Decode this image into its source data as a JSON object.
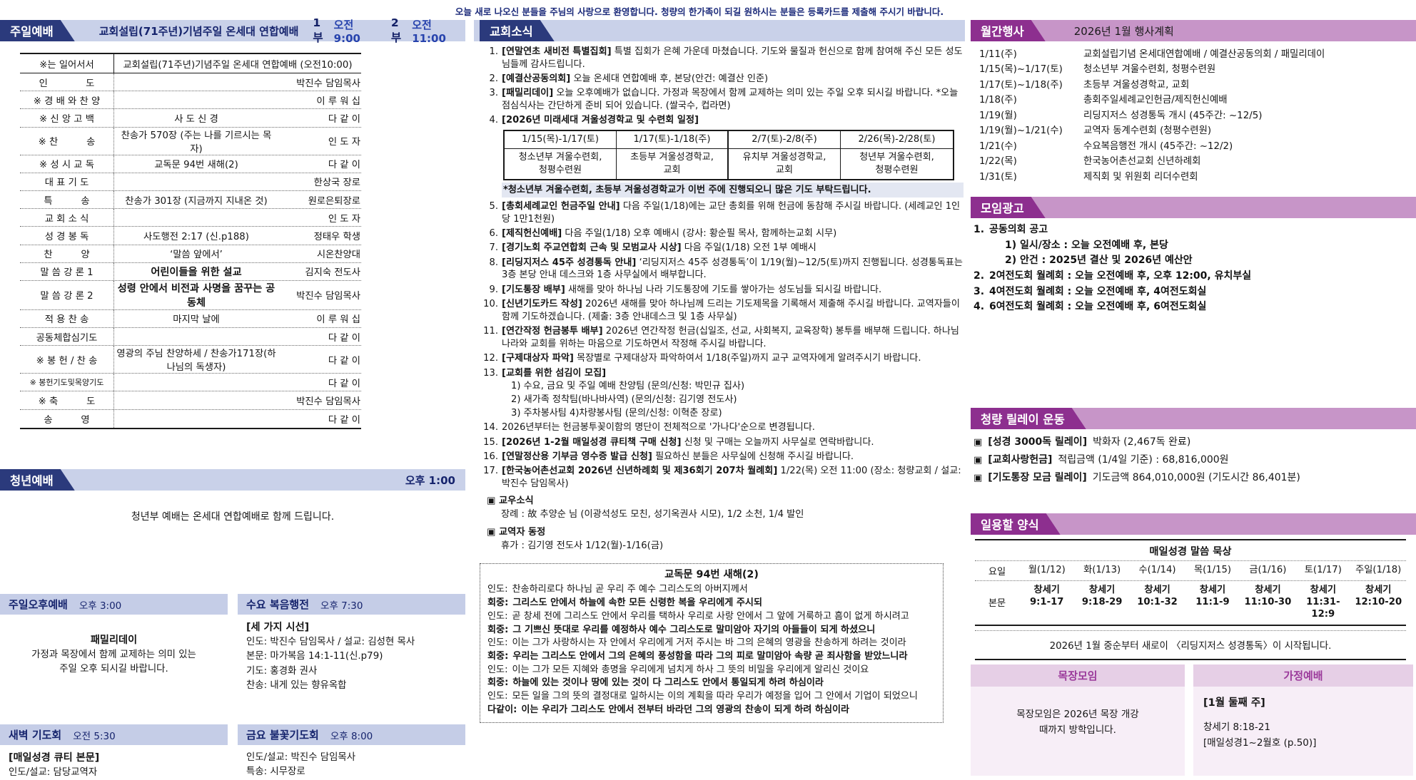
{
  "colors": {
    "navy_tab": "#2b3a7c",
    "blue_band": "#c9d1e9",
    "purple_tab": "#8d2f8f",
    "purple_band": "#c795c8",
    "navy_text": "#16246d",
    "highlight_bg": "#e3e7f2",
    "pink_box_head": "#e6cfe6",
    "pink_box_body": "#f7eef7"
  },
  "top_notice": "오늘 새로 나오신 분들을 주님의 사랑으로 환영합니다. 청량의 한가족이 되길 원하시는 분들은 등록카드를 제출해 주시기 바랍니다.",
  "sunday_worship": {
    "tab": "주일예배",
    "band_title": "교회설립(71주년)기념주일  온세대  연합예배",
    "part1_label": "1부",
    "part1_time": "오전9:00",
    "part2_label": "2부",
    "part2_time": "오전 11:00",
    "header_left": "※는 일어서서",
    "header_right": "교회설립(71주년)기념주일 온세대 연합예배 (오전10:00)",
    "rows": [
      {
        "label": "인　　　　도",
        "content": "",
        "leader": "박진수 담임목사"
      },
      {
        "label": "※ 경 배 와 찬 양",
        "content": "",
        "leader": "이 루 워 십"
      },
      {
        "label": "※ 신 앙 고 백",
        "content": "사 도 신 경",
        "leader": "다  같  이"
      },
      {
        "label": "※ 찬　　　송",
        "content": "찬송가 570장 (주는 나를 기르시는 목자)",
        "leader": "인  도  자"
      },
      {
        "label": "※ 성 시 교 독",
        "content": "교독문 94번 새해(2)",
        "leader": "다  같  이"
      },
      {
        "label": "대  표  기  도",
        "content": "",
        "leader": "한상국 장로"
      },
      {
        "label": "특　　　송",
        "content": "찬송가 301장 (지금까지 지내온 것)",
        "leader": "원로은퇴장로"
      },
      {
        "label": "교  회  소  식",
        "content": "",
        "leader": "인  도  자"
      },
      {
        "label": "성  경  봉  독",
        "content": "사도행전 2:17 (신.p188)",
        "leader": "정태우 학생"
      },
      {
        "label": "찬　　　양",
        "content": "‘말씀 앞에서’",
        "leader": "시온찬양대"
      },
      {
        "label": "말 씀 강 론 1",
        "content": "어린이들을 위한 설교",
        "bold": true,
        "leader": "김지숙 전도사"
      },
      {
        "label": "말 씀 강 론 2",
        "content": "성령 안에서 비전과 사명을 꿈꾸는 공동체",
        "bold": true,
        "leader": "박진수 담임목사"
      },
      {
        "label": "적  용  찬  송",
        "content": "마지막 날에",
        "leader": "이 루 워 십"
      },
      {
        "label": "공동체합심기도",
        "content": "",
        "leader": "다  같  이"
      },
      {
        "label": "※ 봉 헌 / 찬 송",
        "content": "영광의 주님 찬양하세 / 찬송가171장(하나님의 독생자)",
        "leader": "다  같  이"
      },
      {
        "label": "※ 봉헌기도및목양기도",
        "small": true,
        "content": "",
        "leader": "다  같  이"
      },
      {
        "label": "※ 축　　　도",
        "content": "",
        "leader": "박진수 담임목사"
      },
      {
        "label": "송　　　영",
        "content": "",
        "leader": "다  같  이"
      }
    ]
  },
  "youth_worship": {
    "tab": "청년예배",
    "time": "오후 1:00",
    "note": "청년부 예배는 온세대 연합예배로 함께 드립니다."
  },
  "sub_services": [
    {
      "title": "주일오후예배",
      "time": "오후 3:00",
      "center": true,
      "lines": [
        {
          "text": "패밀리데이",
          "bold": true
        },
        {
          "text": "가정과 목장에서 함께 교제하는 의미 있는",
          "bold": false
        },
        {
          "text": "주일 오후 되시길 바랍니다.",
          "bold": false
        }
      ]
    },
    {
      "title": "수요 복음행전",
      "time": "오후 7:30",
      "center": false,
      "lines": [
        {
          "text": "[세 가지 시선]",
          "bold": true
        },
        {
          "text": "인도: 박진수 담임목사 / 설교: 김성현 목사",
          "bold": false
        },
        {
          "text": "본문: 마가복음 14:1-11(신.p79)",
          "bold": false
        },
        {
          "text": "기도: 홍경화 권사",
          "bold": false
        },
        {
          "text": "찬송: 내게 있는 향유옥합",
          "bold": false
        }
      ]
    },
    {
      "title": "새벽 기도회",
      "time": "오전 5:30",
      "center": false,
      "lines": [
        {
          "text": "[매일성경 큐티 본문]",
          "bold": true
        },
        {
          "text": "인도/설교: 담당교역자",
          "bold": false
        }
      ]
    },
    {
      "title": "금요 불꽃기도회",
      "time": "오후 8:00",
      "center": false,
      "lines": [
        {
          "text": "인도/설교: 박진수 담임목사",
          "bold": false
        },
        {
          "text": "특송: 시무장로",
          "bold": false
        }
      ]
    }
  ],
  "church_news": {
    "tab": "교회소식",
    "items": [
      {
        "num": "1.",
        "head": "[연말연초 새비전 특별집회]",
        "text": "특별 집회가 은혜 가운데 마쳤습니다. 기도와 물질과 헌신으로 함께 참여해 주신 모든 성도님들께 감사드립니다."
      },
      {
        "num": "2.",
        "head": "[예결산공동의회]",
        "text": "오늘 온세대 연합예배 후, 본당(안건: 예결산 인준)"
      },
      {
        "num": "3.",
        "head": "[패밀리데이]",
        "text": "오늘 오후예배가 없습니다. 가정과 목장에서 함께 교제하는 의미 있는 주일 오후 되시길 바랍니다. *오늘 점심식사는 간단하게 준비 되어 있습니다. (쌀국수, 컵라면)"
      },
      {
        "num": "4.",
        "head": "[2026년 미래세대 겨울성경학교 및 수련회 일정]",
        "text": "",
        "camp_table": true
      },
      {
        "num": "5.",
        "head": "[총회세례교인 헌금주일 안내]",
        "text": "다음 주일(1/18)에는 교단 총회를 위해 헌금에 동참해 주시길 바랍니다. (세례교인 1인당 1만1천원)"
      },
      {
        "num": "6.",
        "head": "[제직헌신예배]",
        "text": "다음 주일(1/18) 오후 예배시 (강사: 황순필 목사, 함께하는교회 시무)"
      },
      {
        "num": "7.",
        "head": "[경기노회 주교연합회 근속 및 모범교사 시상]",
        "text": "다음 주일(1/18) 오전 1부 예배시"
      },
      {
        "num": "8.",
        "head": "[리딩지저스 45주 성경통독 안내]",
        "text": "‘리딩지저스 45주 성경통독’이 1/19(월)~12/5(토)까지 진행됩니다. 성경통독표는 3층 본당 안내 데스크와 1층 사무실에서 배부합니다."
      },
      {
        "num": "9.",
        "head": "[기도통장 배부]",
        "text": "새해를 맞아 하나님 나라 기도통장에 기도를 쌓아가는 성도님들 되시길 바랍니다."
      },
      {
        "num": "10.",
        "head": "[신년기도카드 작성]",
        "text": "2026년 새해를 맞아 하나님께 드리는 기도제목을 기록해서 제출해 주시길 바랍니다. 교역자들이 함께 기도하겠습니다. (제출: 3층 안내데스크 및 1층 사무실)"
      },
      {
        "num": "11.",
        "head": "[연간작정 헌금봉투 배부]",
        "text": "2026년 연간작정 헌금(십일조, 선교, 사회복지, 교육장학) 봉투를 배부해 드립니다. 하나님 나라와 교회를 위하는 마음으로 기도하면서 작정해 주시길 바랍니다."
      },
      {
        "num": "12.",
        "head": "[구제대상자 파악]",
        "text": "목장별로 구제대상자 파악하여서 1/18(주일)까지 교구 교역자에게 알려주시기 바랍니다."
      },
      {
        "num": "13.",
        "head": "[교회를 위한 섬김이 모집]",
        "text": "",
        "subs": [
          "1) 수요, 금요 및 주일 예배 찬양팀 (문의/신청: 박민규 집사)",
          "2) 새가족 정착팀(바나바사역) (문의/신청: 김기영 전도사)",
          "3) 주차봉사팀   4)차량봉사팀 (문의/신청: 이혁춘 장로)"
        ]
      },
      {
        "num": "14.",
        "head": "",
        "text": "2026년부터는 헌금봉투꽂이함의 명단이 전체적으로 '가나다'순으로 변경됩니다."
      },
      {
        "num": "15.",
        "head": "[2026년 1-2월 매일성경 큐티책 구매 신청]",
        "text": "신청 및 구매는 오늘까지 사무실로 연락바랍니다."
      },
      {
        "num": "16.",
        "head": "[연말정산용 기부금 영수증 발급 신청]",
        "text": "필요하신 분들은 사무실에 신청해 주시길 바랍니다."
      },
      {
        "num": "17.",
        "head": "[한국농어촌선교회 2026년 신년하례회 및 제36회기 207차 월례회]",
        "text": "1/22(목) 오전 11:00 (장소: 청량교회 / 설교: 박진수 담임목사)"
      }
    ],
    "camp_table": [
      {
        "dates": "1/15(목)-1/17(토)",
        "desc1": "청소년부 겨울수련회,",
        "desc2": "청평수련원"
      },
      {
        "dates": "1/17(토)-1/18(주)",
        "desc1": "초등부 겨울성경학교,",
        "desc2": "교회"
      },
      {
        "dates": "2/7(토)-2/8(주)",
        "desc1": "유치부 겨울성경학교,",
        "desc2": "교회"
      },
      {
        "dates": "2/26(목)-2/28(토)",
        "desc1": "청년부 겨울수련회,",
        "desc2": "청평수련원"
      }
    ],
    "camp_note": "*청소년부 겨울수련회, 초등부 겨울성경학교가 이번 주에 진행되오니 많은 기도 부탁드립니다.",
    "member_news_head": "▣ 교우소식",
    "member_news_line": "장례 :  故 추양순 님 (이광석성도 모친, 성기옥권사 시모), 1/2 소천, 1/4 발인",
    "staff_news_head": "▣ 교역자 동정",
    "staff_news_line": "휴가 : 김기영 전도사 1/12(월)-1/16(금)"
  },
  "responsive_reading": {
    "title": "교독문  94번  새해(2)",
    "lines": [
      {
        "speaker": "인도:",
        "text": "찬송하리로다 하나님 곧 우리 주 예수 그리스도의 아버지께서",
        "bold": false
      },
      {
        "speaker": "회중:",
        "text": "그리스도 안에서 하늘에 속한 모든 신령한 복을 우리에게 주시되",
        "bold": true
      },
      {
        "speaker": "인도:",
        "text": "곧 창세 전에 그리스도 안에서 우리를 택하사 우리로 사랑 안에서 그 앞에 거룩하고 흠이 없게 하시려고",
        "bold": false
      },
      {
        "speaker": "회중:",
        "text": "그 기쁘신 뜻대로 우리를 예정하사 예수 그리스도로 말미암아 자기의 아들들이 되게 하셨으니",
        "bold": true
      },
      {
        "speaker": "인도:",
        "text": "이는 그가 사랑하시는 자 안에서 우리에게 거저 주시는 바 그의 은혜의 영광을 찬송하게 하려는 것이라",
        "bold": false
      },
      {
        "speaker": "회중:",
        "text": "우리는 그리스도 안에서 그의 은혜의 풍성함을 따라 그의 피로 말미암아 속량 곧 죄사함을 받았느니라",
        "bold": true
      },
      {
        "speaker": "인도:",
        "text": "이는 그가 모든 지혜와 총명을 우리에게 넘치게 하사 그 뜻의 비밀을 우리에게 알리신 것이요",
        "bold": false
      },
      {
        "speaker": "회중:",
        "text": "하늘에 있는 것이나 땅에 있는 것이 다 그리스도 안에서 통일되게 하려 하심이라",
        "bold": true
      },
      {
        "speaker": "인도:",
        "text": "모든 일을 그의 뜻의 결정대로 일하시는 이의 계획을 따라 우리가 예정을 입어 그 안에서 기업이 되었으니",
        "bold": false
      },
      {
        "speaker": "다같이:",
        "text": "이는 우리가 그리스도 안에서 전부터 바라던 그의 영광의 찬송이 되게 하려 하심이라",
        "bold": true
      }
    ]
  },
  "monthly_events": {
    "tab": "월간행사",
    "title": "2026년  1월  행사계획",
    "events": [
      {
        "date": "1/11(주)",
        "desc": "교회설립기념 온세대연합예배 / 예결산공동의회 / 패밀리데이"
      },
      {
        "date": "1/15(목)~1/17(토)",
        "desc": "청소년부 겨울수련회, 청평수련원"
      },
      {
        "date": "1/17(토)~1/18(주)",
        "desc": "초등부 겨울성경학교, 교회"
      },
      {
        "date": "1/18(주)",
        "desc": "총회주일세례교인헌금/제직헌신예배"
      },
      {
        "date": "1/19(월)",
        "desc": "리딩지저스 성경통독 개시 (45주간: ~12/5)"
      },
      {
        "date": "1/19(월)~1/21(수)",
        "desc": "교역자 동계수련회 (청평수련원)"
      },
      {
        "date": "1/21(수)",
        "desc": "수요복음행전 개시 (45주간: ~12/2)"
      },
      {
        "date": "1/22(목)",
        "desc": "한국농어촌선교회 신년하례회"
      },
      {
        "date": "1/31(토)",
        "desc": "제직회 및 위원회 리더수련회"
      }
    ]
  },
  "meeting_ads": {
    "tab": "모임광고",
    "items": [
      {
        "num": "1.",
        "text": "공동의회 공고",
        "subs": [
          "1) 일시/장소 : 오늘 오전예배 후, 본당",
          "2) 안건 : 2025년 결산 및 2026년 예산안"
        ]
      },
      {
        "num": "2.",
        "text": "2여전도회 월례회 : 오늘 오전예배 후, 오후 12:00, 유치부실"
      },
      {
        "num": "3.",
        "text": "4여전도회 월례회 : 오늘 오전예배 후, 4여전도회실"
      },
      {
        "num": "4.",
        "text": "6여전도회 월례회 : 오늘 오전예배 후, 6여전도회실"
      }
    ]
  },
  "relay": {
    "tab": "청량 릴레이 운동",
    "bullet": "▣",
    "items": [
      {
        "head": "[성경 3000독 릴레이]",
        "text": "박화자 (2,467독 완료)"
      },
      {
        "head": "[교회사랑헌금]",
        "text": "적립금액 (1/4일 기준) : 68,816,000원"
      },
      {
        "head": "[기도통장 모금 릴레이]",
        "text": "기도금액 864,010,000원 (기도시간 86,401분)"
      }
    ]
  },
  "daily_bread": {
    "tab": "일용할 양식",
    "table_title": "매일성경 말씀 묵상",
    "day_label": "요일",
    "body_label": "본문",
    "book": "창세기",
    "days": [
      "월(1/12)",
      "화(1/13)",
      "수(1/14)",
      "목(1/15)",
      "금(1/16)",
      "토(1/17)",
      "주일(1/18)"
    ],
    "refs": [
      "9:1-17",
      "9:18-29",
      "10:1-32",
      "11:1-9",
      "11:10-30",
      "11:31-12:9",
      "12:10-20"
    ],
    "note": "2026년 1월 중순부터 새로이 〈리딩지저스 성경통독〉이 시작됩니다."
  },
  "mokjang": {
    "title": "목장모임",
    "lines": [
      {
        "text": "목장모임은 2026년 목장 개강",
        "bold": false
      },
      {
        "text": "때까지 방학입니다.",
        "bold": false
      }
    ]
  },
  "family_worship": {
    "title": "가정예배",
    "lines": [
      {
        "text": "[1월 둘째 주]",
        "bold": true
      },
      {
        "text": "창세기 8:18-21",
        "bold": false
      },
      {
        "text": "[매일성경1~2월호 (p.50)]",
        "bold": false
      }
    ]
  }
}
